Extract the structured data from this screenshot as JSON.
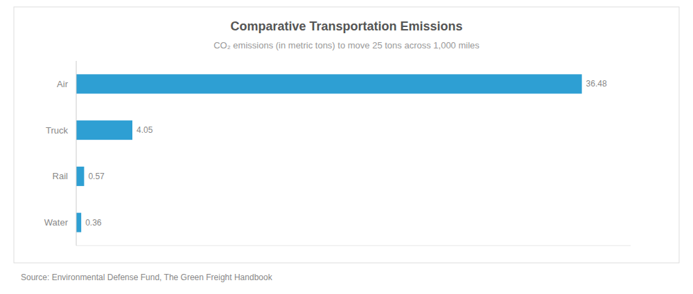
{
  "chart_data": {
    "type": "bar",
    "orientation": "horizontal",
    "title": "Comparative Transportation Emissions",
    "subtitle": "CO₂ emissions (in metric tons) to move 25 tons across 1,000 miles",
    "categories": [
      "Air",
      "Truck",
      "Rail",
      "Water"
    ],
    "values": [
      36.48,
      4.05,
      0.57,
      0.36
    ],
    "color": "#2E9FD3",
    "xlim": [
      0,
      40
    ],
    "data_labels": true,
    "tick_labels": "y",
    "grid": false,
    "annotations": [
      "Source: Environmental Defense Fund, The Green Freight Handbook"
    ]
  }
}
